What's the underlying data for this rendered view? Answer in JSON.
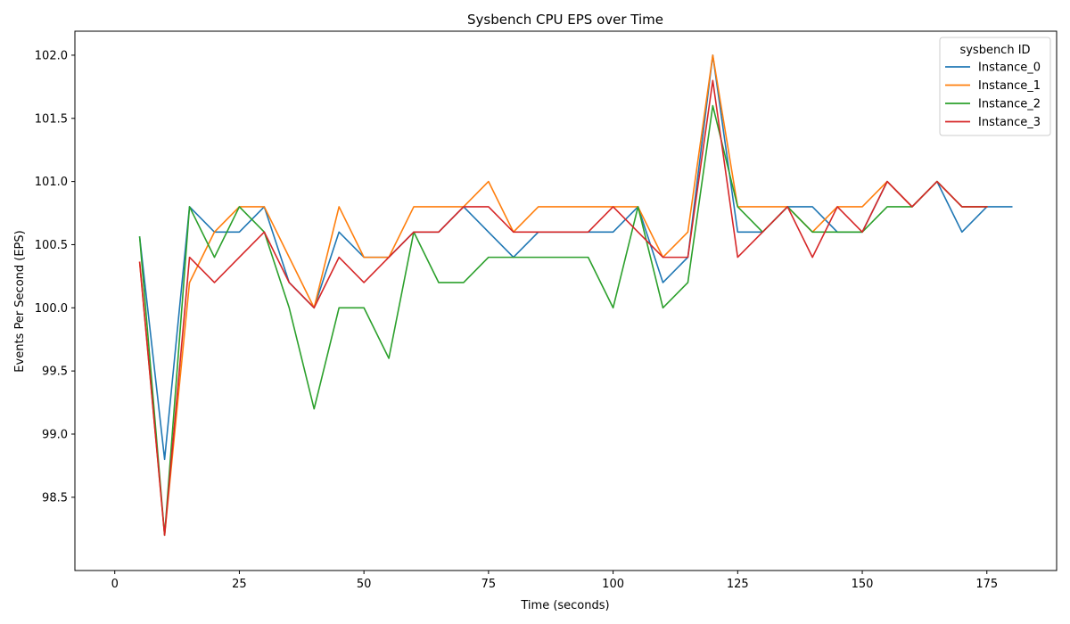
{
  "chart_data": {
    "type": "line",
    "title": "Sysbench CPU EPS over Time",
    "xlabel": "Time (seconds)",
    "ylabel": "Events Per Second (EPS)",
    "xlim": [
      -8,
      189
    ],
    "ylim": [
      97.92,
      102.19
    ],
    "xticks": [
      0,
      25,
      50,
      75,
      100,
      125,
      150,
      175
    ],
    "yticks": [
      98.5,
      99.0,
      99.5,
      100.0,
      100.5,
      101.0,
      101.5,
      102.0
    ],
    "grid": false,
    "legend": {
      "title": "sysbench ID",
      "position": "top-right"
    },
    "series": [
      {
        "name": "Instance_0",
        "color": "#1f77b4",
        "x": [
          5,
          10,
          15,
          20,
          25,
          30,
          35,
          40,
          45,
          50,
          55,
          60,
          65,
          70,
          75,
          80,
          85,
          90,
          95,
          100,
          105,
          110,
          115,
          120,
          125,
          130,
          135,
          140,
          145,
          150,
          155,
          160,
          165,
          170,
          175,
          180
        ],
        "y": [
          100.56,
          98.8,
          100.8,
          100.6,
          100.6,
          100.8,
          100.2,
          100.0,
          100.6,
          100.4,
          100.4,
          100.6,
          100.6,
          100.8,
          100.6,
          100.4,
          100.6,
          100.6,
          100.6,
          100.6,
          100.8,
          100.2,
          100.4,
          102.0,
          100.6,
          100.6,
          100.8,
          100.8,
          100.6,
          100.6,
          101.0,
          100.8,
          101.0,
          100.6,
          100.8,
          100.8
        ]
      },
      {
        "name": "Instance_1",
        "color": "#ff7f0e",
        "x": [
          5,
          10,
          15,
          20,
          25,
          30,
          35,
          40,
          45,
          50,
          55,
          60,
          65,
          70,
          75,
          80,
          85,
          90,
          95,
          100,
          105,
          110,
          115,
          120,
          125,
          130,
          135,
          140,
          145,
          150,
          155,
          160,
          165,
          170,
          175
        ],
        "y": [
          100.36,
          98.2,
          100.2,
          100.6,
          100.8,
          100.8,
          100.4,
          100.0,
          100.8,
          100.4,
          100.4,
          100.8,
          100.8,
          100.8,
          101.0,
          100.6,
          100.8,
          100.8,
          100.8,
          100.8,
          100.8,
          100.4,
          100.6,
          102.0,
          100.8,
          100.8,
          100.8,
          100.6,
          100.8,
          100.8,
          101.0,
          100.8,
          101.0,
          100.8,
          100.8
        ]
      },
      {
        "name": "Instance_2",
        "color": "#2ca02c",
        "x": [
          5,
          10,
          15,
          20,
          25,
          30,
          35,
          40,
          45,
          50,
          55,
          60,
          65,
          70,
          75,
          80,
          85,
          90,
          95,
          100,
          105,
          110,
          115,
          120,
          125,
          130,
          135,
          140,
          145,
          150,
          155,
          160,
          165,
          170,
          175
        ],
        "y": [
          100.56,
          98.2,
          100.8,
          100.4,
          100.8,
          100.6,
          100.0,
          99.2,
          100.0,
          100.0,
          99.6,
          100.6,
          100.2,
          100.2,
          100.4,
          100.4,
          100.4,
          100.4,
          100.4,
          100.0,
          100.8,
          100.0,
          100.2,
          101.6,
          100.8,
          100.6,
          100.8,
          100.6,
          100.6,
          100.6,
          100.8,
          100.8,
          101.0,
          100.8,
          100.8
        ]
      },
      {
        "name": "Instance_3",
        "color": "#d62728",
        "x": [
          5,
          10,
          15,
          20,
          25,
          30,
          35,
          40,
          45,
          50,
          55,
          60,
          65,
          70,
          75,
          80,
          85,
          90,
          95,
          100,
          105,
          110,
          115,
          120,
          125,
          130,
          135,
          140,
          145,
          150,
          155,
          160,
          165,
          170,
          175
        ],
        "y": [
          100.36,
          98.2,
          100.4,
          100.2,
          100.4,
          100.6,
          100.2,
          100.0,
          100.4,
          100.2,
          100.4,
          100.6,
          100.6,
          100.8,
          100.8,
          100.6,
          100.6,
          100.6,
          100.6,
          100.8,
          100.6,
          100.4,
          100.4,
          101.8,
          100.4,
          100.6,
          100.8,
          100.4,
          100.8,
          100.6,
          101.0,
          100.8,
          101.0,
          100.8,
          100.8
        ]
      }
    ]
  }
}
